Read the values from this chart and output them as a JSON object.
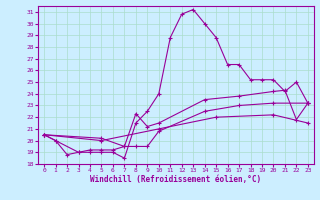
{
  "xlabel": "Windchill (Refroidissement éolien,°C)",
  "bg_color": "#cceeff",
  "line_color": "#990099",
  "grid_color": "#aaddcc",
  "xlim": [
    -0.5,
    23.5
  ],
  "ylim": [
    18,
    31.5
  ],
  "xticks": [
    0,
    1,
    2,
    3,
    4,
    5,
    6,
    7,
    8,
    9,
    10,
    11,
    12,
    13,
    14,
    15,
    16,
    17,
    18,
    19,
    20,
    21,
    22,
    23
  ],
  "yticks": [
    18,
    19,
    20,
    21,
    22,
    23,
    24,
    25,
    26,
    27,
    28,
    29,
    30,
    31
  ],
  "series1": [
    [
      0,
      20.5
    ],
    [
      1,
      20.0
    ],
    [
      2,
      18.8
    ],
    [
      3,
      19.0
    ],
    [
      4,
      19.0
    ],
    [
      5,
      19.0
    ],
    [
      6,
      19.0
    ],
    [
      7,
      18.5
    ],
    [
      8,
      21.5
    ],
    [
      9,
      22.5
    ],
    [
      10,
      24.0
    ],
    [
      11,
      28.8
    ],
    [
      12,
      30.8
    ],
    [
      13,
      31.2
    ],
    [
      14,
      30.0
    ],
    [
      15,
      28.8
    ],
    [
      16,
      26.5
    ],
    [
      17,
      26.5
    ],
    [
      18,
      25.2
    ],
    [
      19,
      25.2
    ],
    [
      20,
      25.2
    ],
    [
      21,
      24.2
    ],
    [
      22,
      25.0
    ],
    [
      23,
      23.2
    ]
  ],
  "series2": [
    [
      0,
      20.5
    ],
    [
      1,
      20.0
    ],
    [
      3,
      19.0
    ],
    [
      4,
      19.2
    ],
    [
      5,
      19.2
    ],
    [
      6,
      19.2
    ],
    [
      7,
      19.5
    ],
    [
      8,
      22.3
    ],
    [
      9,
      21.2
    ],
    [
      10,
      21.5
    ],
    [
      14,
      23.5
    ],
    [
      17,
      23.8
    ],
    [
      20,
      24.2
    ],
    [
      21,
      24.3
    ],
    [
      22,
      21.8
    ],
    [
      23,
      23.2
    ]
  ],
  "series3": [
    [
      0,
      20.5
    ],
    [
      5,
      20.2
    ],
    [
      7,
      19.5
    ],
    [
      8,
      19.5
    ],
    [
      9,
      19.5
    ],
    [
      10,
      20.8
    ],
    [
      14,
      22.5
    ],
    [
      17,
      23.0
    ],
    [
      20,
      23.2
    ],
    [
      23,
      23.2
    ]
  ],
  "series4": [
    [
      0,
      20.5
    ],
    [
      5,
      20.0
    ],
    [
      10,
      21.0
    ],
    [
      15,
      22.0
    ],
    [
      20,
      22.2
    ],
    [
      23,
      21.5
    ]
  ]
}
